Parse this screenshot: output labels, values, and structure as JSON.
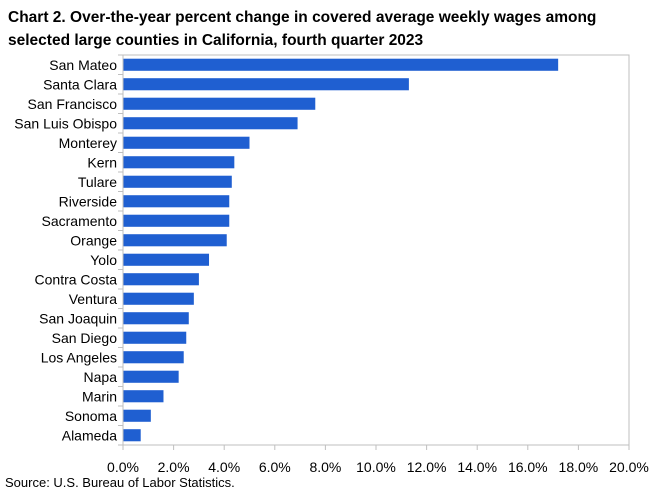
{
  "title": "Chart 2. Over-the-year percent change in covered average weekly wages among selected large counties in California, fourth quarter 2023",
  "source": "Source: U.S. Bureau of Labor Statistics.",
  "colors": {
    "bar": "#1f5fd1",
    "axis": "#bfbfbf",
    "plot_border": "#bfbfbf"
  },
  "chart_data": {
    "type": "bar",
    "orientation": "horizontal",
    "title": "Over-the-year percent change in covered average weekly wages among selected large counties in California, fourth quarter 2023",
    "xlabel": "",
    "ylabel": "",
    "xlim": [
      0,
      20
    ],
    "x_ticks": [
      "0.0%",
      "2.0%",
      "4.0%",
      "6.0%",
      "8.0%",
      "10.0%",
      "12.0%",
      "14.0%",
      "16.0%",
      "18.0%",
      "20.0%"
    ],
    "grid": false,
    "categories": [
      "San Mateo",
      "Santa Clara",
      "San Francisco",
      "San Luis Obispo",
      "Monterey",
      "Kern",
      "Tulare",
      "Riverside",
      "Sacramento",
      "Orange",
      "Yolo",
      "Contra Costa",
      "Ventura",
      "San Joaquin",
      "San Diego",
      "Los Angeles",
      "Napa",
      "Marin",
      "Sonoma",
      "Alameda"
    ],
    "values": [
      17.2,
      11.3,
      7.6,
      6.9,
      5.0,
      4.4,
      4.3,
      4.2,
      4.2,
      4.1,
      3.4,
      3.0,
      2.8,
      2.6,
      2.5,
      2.4,
      2.2,
      1.6,
      1.1,
      0.7
    ]
  }
}
